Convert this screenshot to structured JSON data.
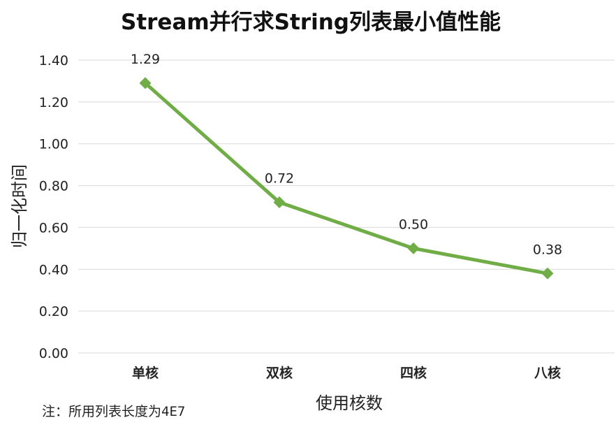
{
  "chart_data": {
    "type": "line",
    "title": "Stream并行求String列表最小值性能",
    "xlabel": "使用核数",
    "ylabel": "归一化时间",
    "categories": [
      "单核",
      "双核",
      "四核",
      "八核"
    ],
    "series": [
      {
        "values": [
          1.29,
          0.72,
          0.5,
          0.38
        ],
        "color": "#70ad47"
      }
    ],
    "data_labels": [
      "1.29",
      "0.72",
      "0.50",
      "0.38"
    ],
    "yticks": [
      "0.00",
      "0.20",
      "0.40",
      "0.60",
      "0.80",
      "1.00",
      "1.20",
      "1.40"
    ],
    "ylim": [
      0,
      1.4
    ],
    "grid": true,
    "legend": "none"
  },
  "note": "注：所用列表长度为4E7"
}
